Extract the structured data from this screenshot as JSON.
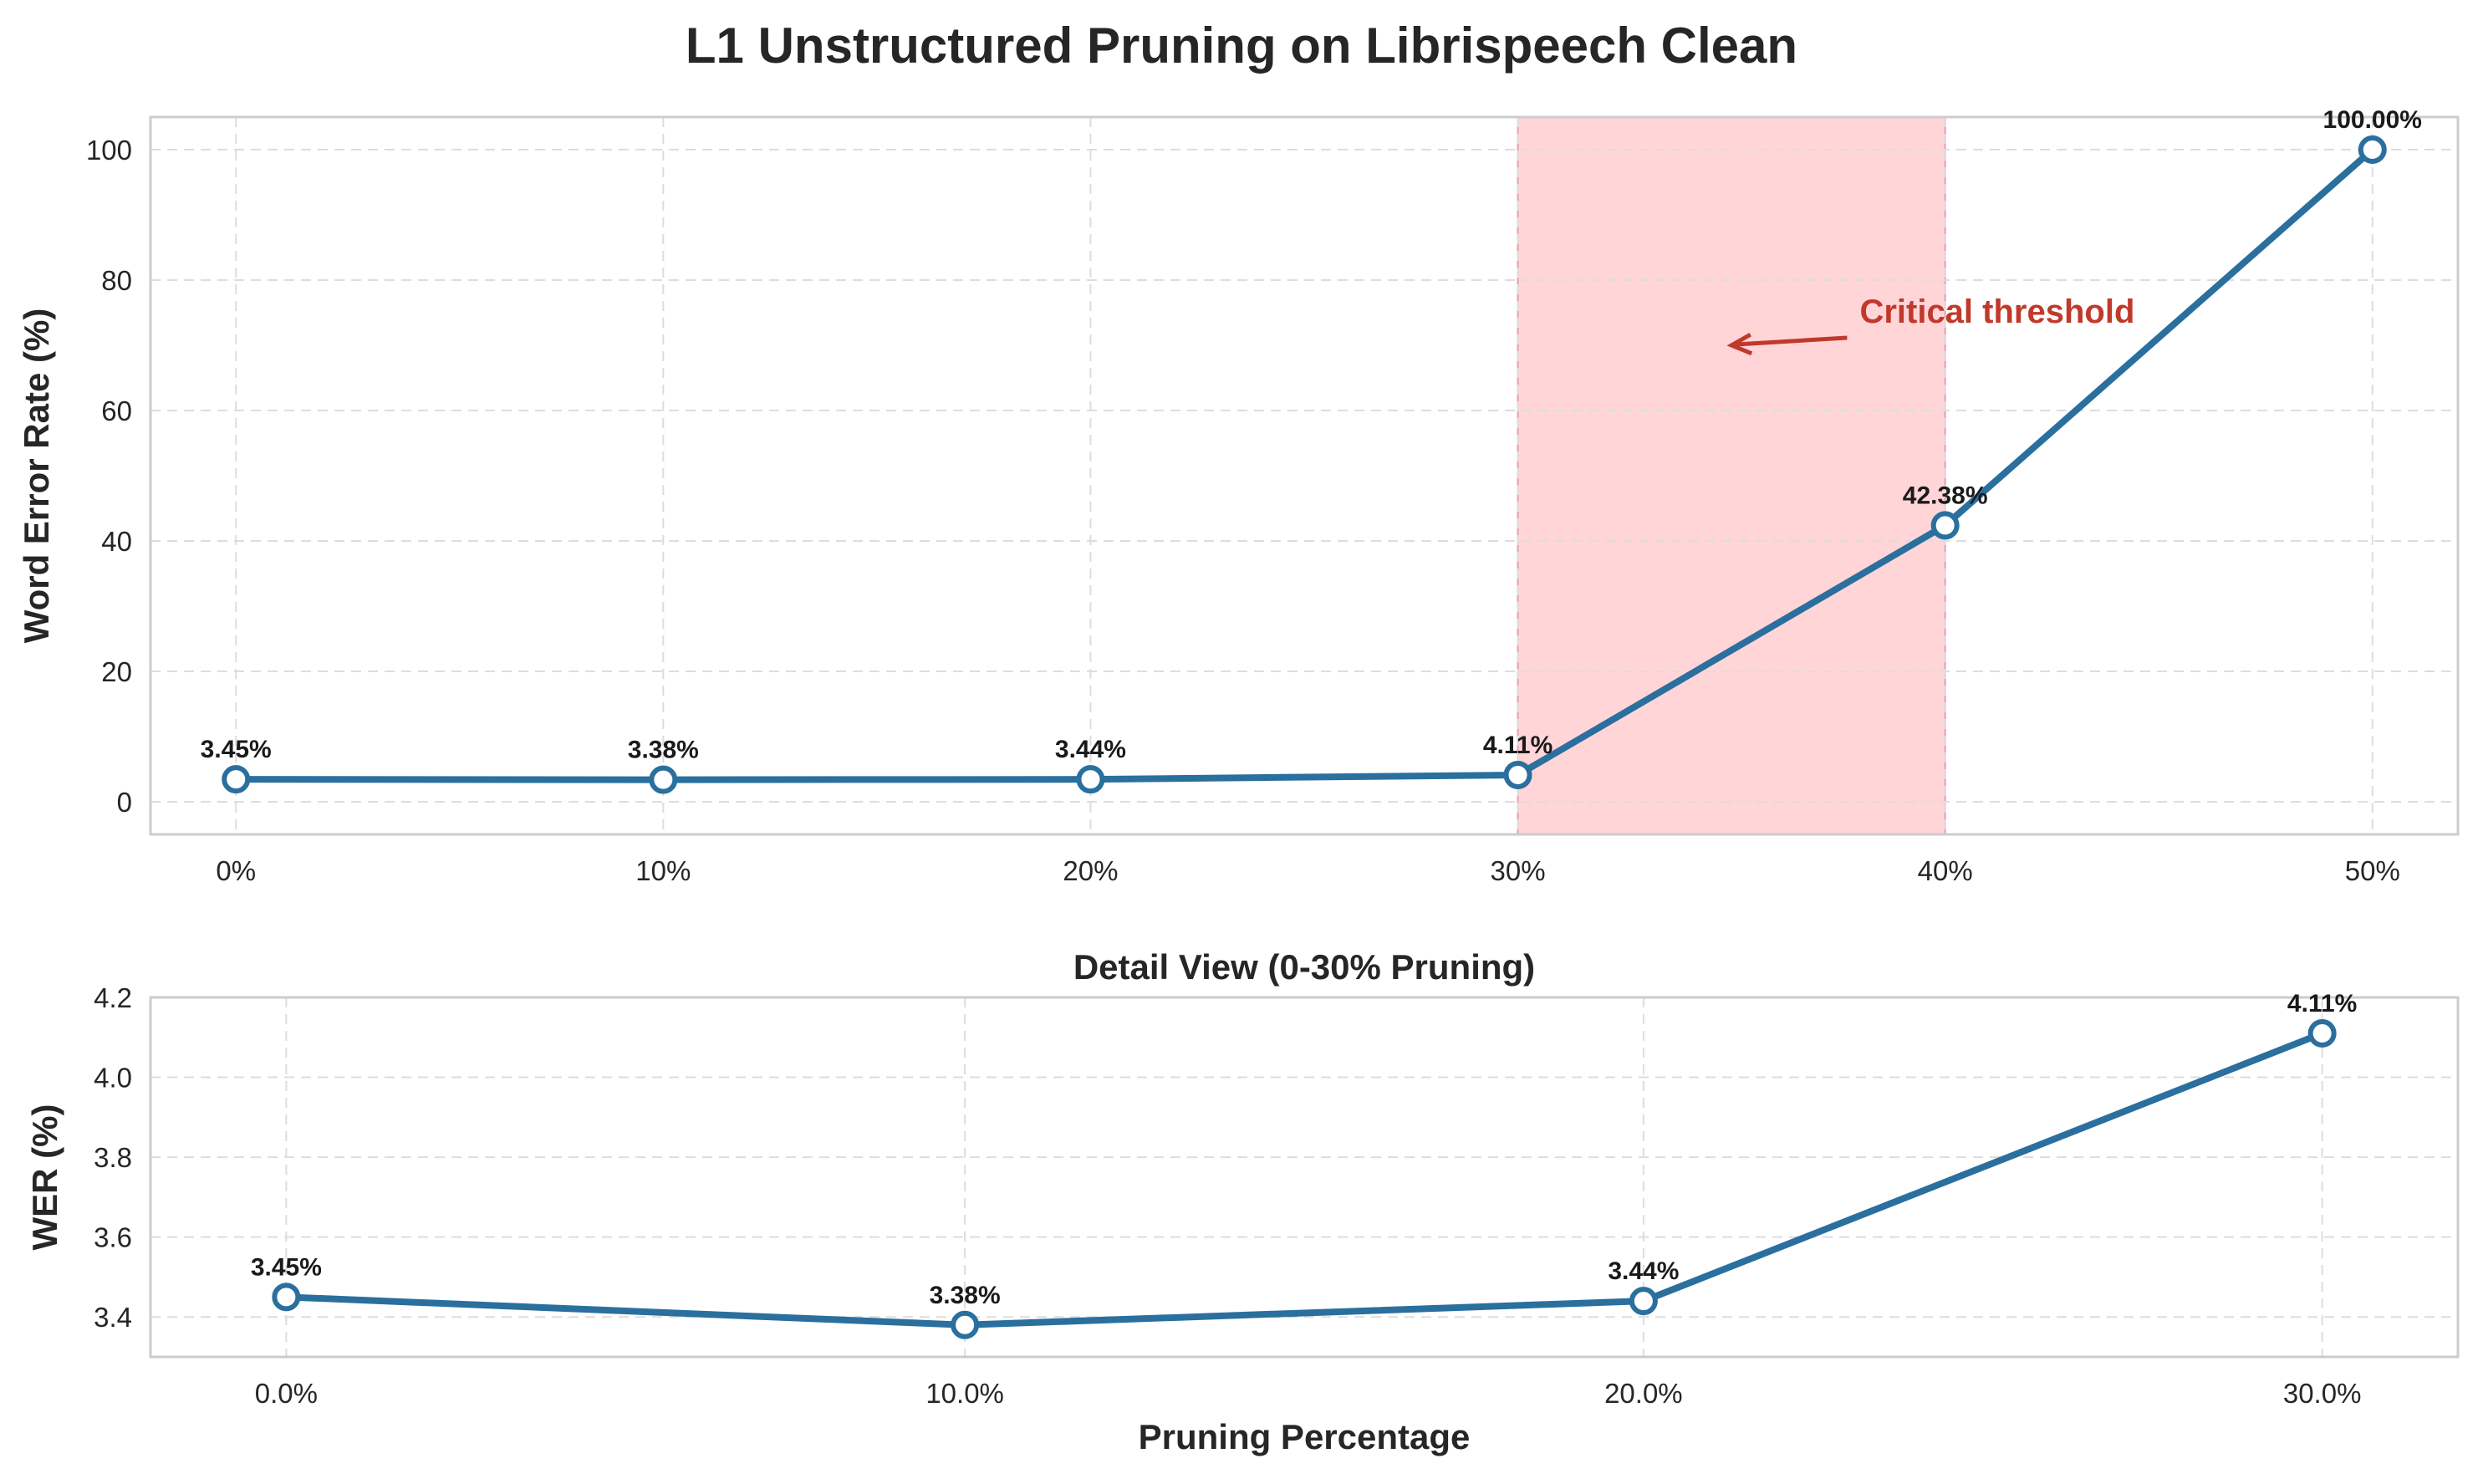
{
  "figure_title": "L1 Unstructured Pruning on Librispeech Clean",
  "chart_data": [
    {
      "type": "line",
      "title": "",
      "xlabel": "",
      "ylabel": "Word Error Rate (%)",
      "x": [
        0,
        10,
        20,
        30,
        40,
        50
      ],
      "x_tick_labels": [
        "0%",
        "10%",
        "20%",
        "30%",
        "40%",
        "50%"
      ],
      "xlim": [
        -2,
        52
      ],
      "ylim": [
        -5,
        105
      ],
      "y_ticks": [
        0,
        20,
        40,
        60,
        80,
        100
      ],
      "y_tick_labels": [
        "0",
        "20",
        "40",
        "60",
        "80",
        "100"
      ],
      "grid": true,
      "series": [
        {
          "values": [
            3.45,
            3.38,
            3.44,
            4.11,
            42.38,
            100.0
          ],
          "data_labels": [
            "3.45%",
            "3.38%",
            "3.44%",
            "4.11%",
            "42.38%",
            "100.00%"
          ],
          "color": "#2a6f9e"
        }
      ],
      "shaded_region": {
        "x_start": 30,
        "x_end": 40,
        "color": "#ffb3b8"
      },
      "annotation": {
        "text": "Critical threshold",
        "text_x": 38,
        "text_y": 75,
        "arrow_to_x": 35,
        "arrow_to_y": 70,
        "color": "#c0392b"
      }
    },
    {
      "type": "line",
      "title": "Detail View (0-30% Pruning)",
      "xlabel": "Pruning Percentage",
      "ylabel": "WER (%)",
      "x": [
        0,
        10,
        20,
        30
      ],
      "x_tick_labels": [
        "0.0%",
        "10.0%",
        "20.0%",
        "30.0%"
      ],
      "xlim": [
        -2,
        32
      ],
      "ylim": [
        3.3,
        4.2
      ],
      "y_ticks": [
        3.4,
        3.6,
        3.8,
        4.0,
        4.2
      ],
      "y_tick_labels": [
        "3.4",
        "3.6",
        "3.8",
        "4.0",
        "4.2"
      ],
      "grid": true,
      "series": [
        {
          "values": [
            3.45,
            3.38,
            3.44,
            4.11
          ],
          "data_labels": [
            "3.45%",
            "3.38%",
            "3.44%",
            "4.11%"
          ],
          "color": "#2a6f9e"
        }
      ]
    }
  ]
}
